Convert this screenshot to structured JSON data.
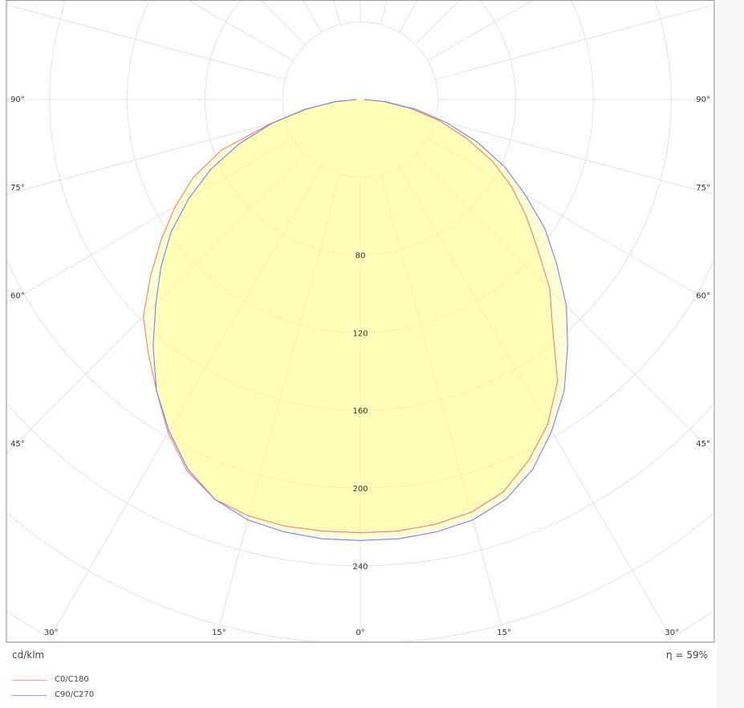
{
  "chart_data": {
    "type": "polar",
    "unit_label": "cd/klm",
    "efficiency_label": "η = 59%",
    "radial_ticks": [
      80,
      120,
      160,
      200,
      240
    ],
    "radial_grid_step": 40,
    "angle_grid_step_deg": 15,
    "angle_labels": {
      "left_right": [
        "90°",
        "75°",
        "60°",
        "45°"
      ],
      "bottom": [
        "30°",
        "15°",
        "0°",
        "15°",
        "30°"
      ]
    },
    "angles_deg": [
      0,
      5,
      10,
      15,
      20,
      25,
      30,
      35,
      40,
      45,
      50,
      55,
      60,
      65,
      70,
      75,
      80,
      85,
      90
    ],
    "series": [
      {
        "name": "C0/C180",
        "color": "#ff7b6b",
        "right": [
          223,
          223,
          222,
          220,
          215,
          205,
          193,
          177,
          154,
          138,
          119,
          104,
          90,
          75,
          58,
          42,
          26,
          12,
          2
        ],
        "left": [
          223,
          223,
          223,
          222,
          219,
          211,
          198,
          183,
          170,
          158,
          141,
          125,
          110,
          95,
          76,
          48,
          28,
          13,
          2
        ]
      },
      {
        "name": "C90/C270",
        "color": "#7b7bff",
        "right": [
          227,
          227,
          226,
          224,
          219,
          210,
          197,
          183,
          166,
          150,
          132,
          116,
          98,
          82,
          64,
          46,
          29,
          13,
          2
        ],
        "left": [
          227,
          227,
          226,
          224,
          219,
          210,
          197,
          183,
          166,
          149,
          134,
          119,
          102,
          85,
          66,
          47,
          29,
          13,
          2
        ]
      }
    ],
    "fill_color": "#ffff80",
    "grid_color": "#e3e3e3"
  }
}
